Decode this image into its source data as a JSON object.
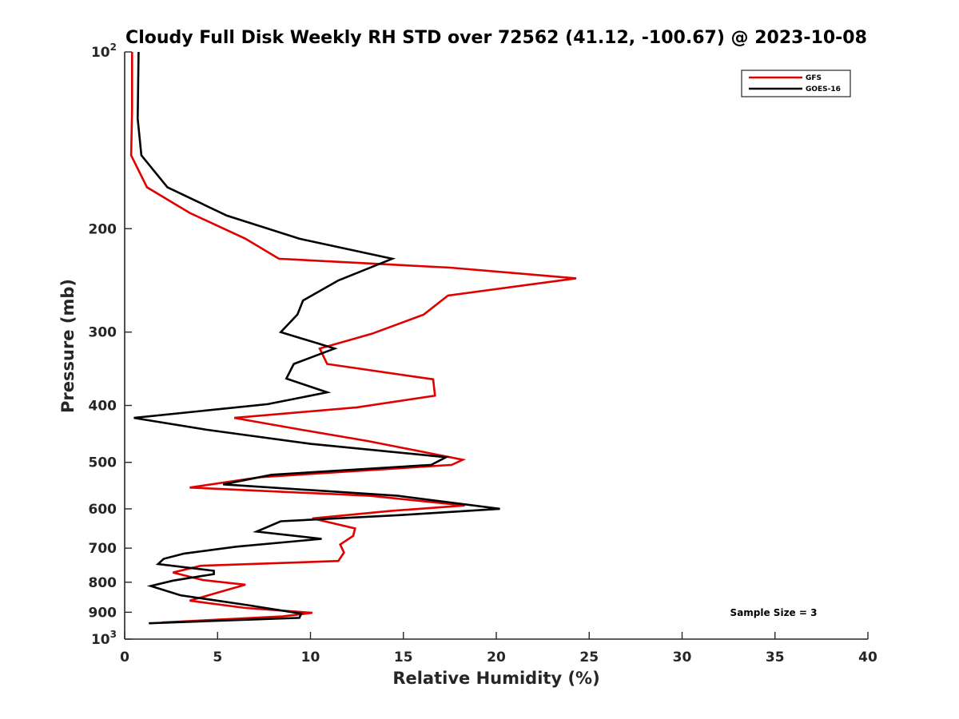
{
  "chart_data": {
    "type": "line",
    "title": "Cloudy Full Disk Weekly RH STD over 72562 (41.12, -100.67) @ 2023-10-08",
    "xlabel": "Relative Humidity (%)",
    "ylabel": "Pressure (mb)",
    "xlim": [
      0,
      40
    ],
    "ylim": [
      100,
      1000
    ],
    "y_scale": "log",
    "y_reversed": true,
    "grid": false,
    "legend_position": "top-right",
    "x_ticks": [
      "0",
      "5",
      "10",
      "15",
      "20",
      "25",
      "30",
      "35",
      "40"
    ],
    "y_ticks": [
      {
        "value": 100,
        "base": "10",
        "exp": "2"
      },
      {
        "value": 200,
        "label": "200"
      },
      {
        "value": 300,
        "label": "300"
      },
      {
        "value": 400,
        "label": "400"
      },
      {
        "value": 500,
        "label": "500"
      },
      {
        "value": 600,
        "label": "600"
      },
      {
        "value": 700,
        "label": "700"
      },
      {
        "value": 800,
        "label": "800"
      },
      {
        "value": 900,
        "label": "900"
      },
      {
        "value": 1000,
        "base": "10",
        "exp": "3"
      }
    ],
    "annotation": "Sample Size = 3",
    "series": [
      {
        "name": "GFS",
        "color": "#e00000",
        "points": [
          [
            0.4,
            100
          ],
          [
            0.4,
            125
          ],
          [
            0.35,
            150
          ],
          [
            1.2,
            170
          ],
          [
            3.5,
            188
          ],
          [
            6.5,
            208
          ],
          [
            8.3,
            225
          ],
          [
            17.5,
            233
          ],
          [
            24.3,
            243
          ],
          [
            17.4,
            260
          ],
          [
            16.1,
            280
          ],
          [
            13.3,
            302
          ],
          [
            10.5,
            320
          ],
          [
            10.9,
            340
          ],
          [
            16.6,
            361
          ],
          [
            16.7,
            385
          ],
          [
            12.5,
            403
          ],
          [
            5.9,
            420
          ],
          [
            9.5,
            440
          ],
          [
            13.1,
            460
          ],
          [
            18.2,
            495
          ],
          [
            17.6,
            505
          ],
          [
            7.3,
            530
          ],
          [
            3.5,
            552
          ],
          [
            13.2,
            570
          ],
          [
            18.3,
            592
          ],
          [
            14.3,
            605
          ],
          [
            10.1,
            623
          ],
          [
            12.4,
            648
          ],
          [
            12.3,
            667
          ],
          [
            11.6,
            690
          ],
          [
            11.8,
            712
          ],
          [
            11.5,
            736
          ],
          [
            4.1,
            750
          ],
          [
            2.6,
            770
          ],
          [
            4.2,
            793
          ],
          [
            6.5,
            808
          ],
          [
            5.2,
            830
          ],
          [
            3.5,
            860
          ],
          [
            6.5,
            885
          ],
          [
            10.1,
            902
          ],
          [
            8.5,
            915
          ],
          [
            2.0,
            937
          ]
        ]
      },
      {
        "name": "GOES-16",
        "color": "#000000",
        "points": [
          [
            0.75,
            100
          ],
          [
            0.7,
            130
          ],
          [
            0.9,
            150
          ],
          [
            2.3,
            170
          ],
          [
            5.5,
            190
          ],
          [
            9.4,
            208
          ],
          [
            14.4,
            225
          ],
          [
            11.5,
            245
          ],
          [
            9.6,
            265
          ],
          [
            9.3,
            280
          ],
          [
            8.4,
            300
          ],
          [
            11.3,
            320
          ],
          [
            9.1,
            340
          ],
          [
            8.7,
            360
          ],
          [
            10.9,
            380
          ],
          [
            7.7,
            398
          ],
          [
            0.5,
            420
          ],
          [
            4.4,
            440
          ],
          [
            10.0,
            465
          ],
          [
            17.3,
            490
          ],
          [
            16.5,
            505
          ],
          [
            7.9,
            525
          ],
          [
            5.3,
            545
          ],
          [
            14.7,
            570
          ],
          [
            20.2,
            600
          ],
          [
            14.8,
            615
          ],
          [
            8.4,
            630
          ],
          [
            7.1,
            656
          ],
          [
            10.6,
            675
          ],
          [
            6.0,
            696
          ],
          [
            3.2,
            715
          ],
          [
            2.1,
            730
          ],
          [
            1.8,
            745
          ],
          [
            4.8,
            765
          ],
          [
            4.8,
            775
          ],
          [
            2.6,
            795
          ],
          [
            1.4,
            812
          ],
          [
            3.0,
            842
          ],
          [
            6.6,
            875
          ],
          [
            9.5,
            905
          ],
          [
            9.4,
            920
          ],
          [
            1.3,
            940
          ]
        ]
      }
    ]
  }
}
